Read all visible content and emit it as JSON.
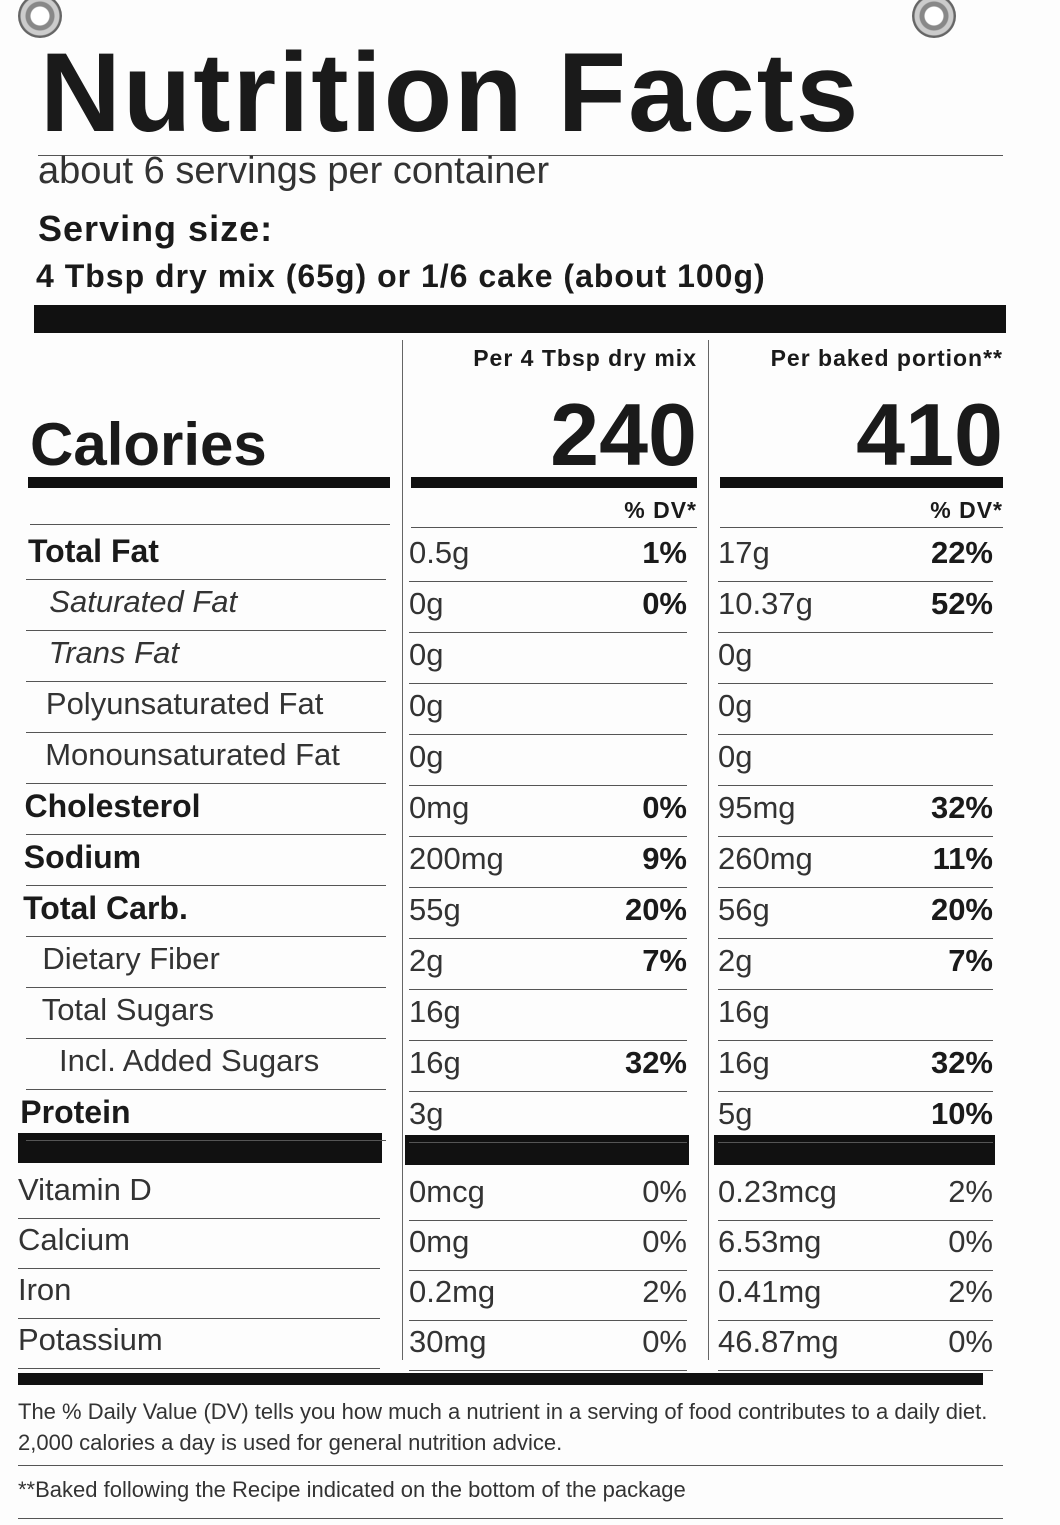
{
  "title": "Nutrition Facts",
  "servings": "about 6 servings per container",
  "serving_size_label": "Serving size:",
  "serving_size": "4 Tbsp dry mix (65g) or 1/6 cake (about 100g)",
  "calories_label": "Calories",
  "columns": [
    {
      "header": "Per 4 Tbsp dry mix",
      "calories": "240",
      "dv_header": "% DV*"
    },
    {
      "header": "Per baked portion**",
      "calories": "410",
      "dv_header": "% DV*"
    }
  ],
  "nutrients": [
    {
      "name": "Total Fat",
      "values": [
        {
          "amount": "0.5g",
          "dv": "1%"
        },
        {
          "amount": "17g",
          "dv": "22%"
        }
      ]
    },
    {
      "name": "Saturated Fat",
      "values": [
        {
          "amount": "0g",
          "dv": "0%"
        },
        {
          "amount": "10.37g",
          "dv": "52%"
        }
      ]
    },
    {
      "name": "Trans Fat",
      "values": [
        {
          "amount": "0g"
        },
        {
          "amount": "0g"
        }
      ]
    },
    {
      "name": "Polyunsaturated Fat",
      "values": [
        {
          "amount": "0g"
        },
        {
          "amount": "0g"
        }
      ]
    },
    {
      "name": "Monounsaturated Fat",
      "values": [
        {
          "amount": "0g"
        },
        {
          "amount": "0g"
        }
      ]
    },
    {
      "name": "Cholesterol",
      "values": [
        {
          "amount": "0mg",
          "dv": "0%"
        },
        {
          "amount": "95mg",
          "dv": "32%"
        }
      ]
    },
    {
      "name": "Sodium",
      "values": [
        {
          "amount": "200mg",
          "dv": "9%"
        },
        {
          "amount": "260mg",
          "dv": "11%"
        }
      ]
    },
    {
      "name": "Total Carb.",
      "values": [
        {
          "amount": "55g",
          "dv": "20%"
        },
        {
          "amount": "56g",
          "dv": "20%"
        }
      ]
    },
    {
      "name": "Dietary Fiber",
      "values": [
        {
          "amount": "2g",
          "dv": "7%"
        },
        {
          "amount": "2g",
          "dv": "7%"
        }
      ]
    },
    {
      "name": "Total Sugars",
      "values": [
        {
          "amount": "16g"
        },
        {
          "amount": "16g"
        }
      ]
    },
    {
      "name": "Incl. Added Sugars",
      "values": [
        {
          "amount": "16g",
          "dv": "32%"
        },
        {
          "amount": "16g",
          "dv": "32%"
        }
      ]
    },
    {
      "name": "Protein",
      "values": [
        {
          "amount": "3g"
        },
        {
          "amount": "5g",
          "dv": "10%"
        }
      ]
    }
  ],
  "vitamins": [
    {
      "name": "Vitamin D",
      "values": [
        {
          "amount": "0mcg",
          "dv": "0%"
        },
        {
          "amount": "0.23mcg",
          "dv": "2%"
        }
      ]
    },
    {
      "name": "Calcium",
      "values": [
        {
          "amount": "0mg",
          "dv": "0%"
        },
        {
          "amount": "6.53mg",
          "dv": "0%"
        }
      ]
    },
    {
      "name": "Iron",
      "values": [
        {
          "amount": "0.2mg",
          "dv": "2%"
        },
        {
          "amount": "0.41mg",
          "dv": "2%"
        }
      ]
    },
    {
      "name": "Potassium",
      "values": [
        {
          "amount": "30mg",
          "dv": "0%"
        },
        {
          "amount": "46.87mg",
          "dv": "0%"
        }
      ]
    }
  ],
  "footnotes": [
    "The % Daily Value (DV) tells you how much a nutrient in a serving of food contributes to a daily diet. 2,000 calories a day is used for general nutrition advice.",
    "**Baked following the Recipe indicated on the bottom of the package"
  ]
}
